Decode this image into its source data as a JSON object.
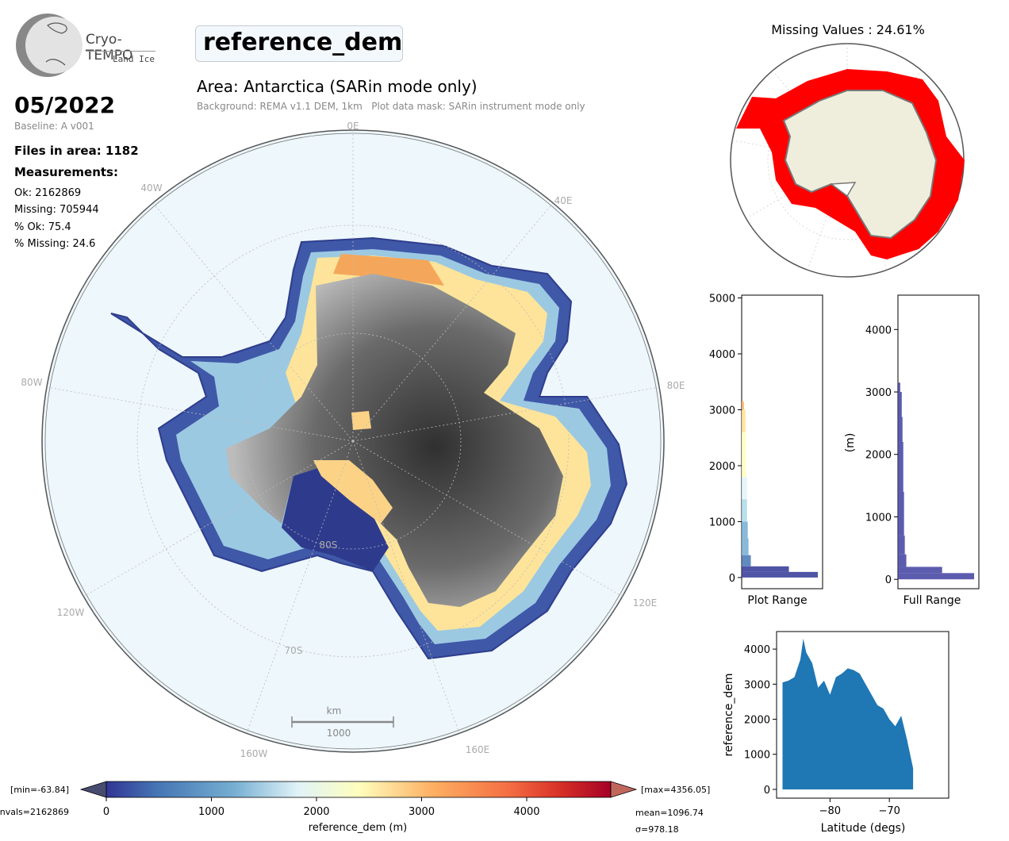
{
  "logo": {
    "line1": "Cryo-TEMPO",
    "line2": "Land Ice"
  },
  "header": {
    "parameter": "reference_dem",
    "date": "05/2022",
    "baseline": "Baseline: A v001",
    "area_title": "Area: Antarctica (SARin mode only)",
    "area_subtitle": "Background: REMA v1.1 DEM, 1km   Plot data mask: SARin instrument mode only"
  },
  "stats": {
    "files": "Files in area: 1182",
    "measurements_heading": "Measurements:",
    "ok": "Ok: 2162869",
    "missing": "Missing: 705944",
    "pct_ok": "% Ok: 75.4",
    "pct_missing": "% Missing: 24.6"
  },
  "map": {
    "lon_labels": [
      "0E",
      "40E",
      "80E",
      "120E",
      "160E",
      "160W",
      "120W",
      "80W",
      "40W"
    ],
    "lat_labels": [
      "80S",
      "70S"
    ],
    "scalebar_unit": "km",
    "scalebar_value": "1000",
    "colors": {
      "ocean": "#eef7fc",
      "low": "#313695",
      "mid": "#fefebe",
      "high": "#a50026"
    }
  },
  "colorbar": {
    "label": "reference_dem (m)",
    "ticks": [
      "0",
      "1000",
      "2000",
      "3000",
      "4000"
    ],
    "min_label": "[min=-63.84]",
    "max_label": "[max=4356.05]",
    "nvals_label": "nvals=2162869",
    "mean_label": "mean=1096.74",
    "sigma_label": "σ=978.18"
  },
  "chart_data": [
    {
      "type": "area",
      "title": "Missing Values : 24.61%",
      "description_values": {
        "missing_percent": 24.61
      }
    },
    {
      "type": "bar",
      "orientation": "horizontal",
      "xlabel": "Plot Range",
      "ylabel": "",
      "ylim": [
        -200,
        5050
      ],
      "yticks": [
        0,
        1000,
        2000,
        3000,
        4000,
        5000
      ],
      "bins": [
        0,
        100,
        200,
        400,
        700,
        1000,
        1400,
        1800,
        2200,
        2600,
        3000
      ],
      "counts": [
        1.0,
        0.62,
        0.12,
        0.09,
        0.08,
        0.07,
        0.07,
        0.06,
        0.06,
        0.05,
        0.03
      ]
    },
    {
      "type": "bar",
      "orientation": "horizontal",
      "xlabel": "Full Range",
      "ylabel": "(m)",
      "ylim": [
        -150,
        4550
      ],
      "yticks": [
        0,
        1000,
        2000,
        3000,
        4000
      ],
      "bins": [
        0,
        100,
        200,
        400,
        700,
        1000,
        1400,
        1800,
        2200,
        2600,
        3000
      ],
      "counts": [
        1.0,
        0.58,
        0.11,
        0.09,
        0.08,
        0.08,
        0.07,
        0.07,
        0.06,
        0.05,
        0.03
      ],
      "color": "#3f3fa0"
    },
    {
      "type": "scatter",
      "xlabel": "Latitude (degs)",
      "ylabel": "reference_dem",
      "xlim": [
        -89,
        -60
      ],
      "ylim": [
        -250,
        4500
      ],
      "xticks": [
        -80,
        -70
      ],
      "xtick_labels": [
        "−80",
        "−70"
      ],
      "yticks": [
        0,
        1000,
        2000,
        3000,
        4000
      ],
      "upper_envelope": [
        [
          -88,
          3050
        ],
        [
          -87,
          3100
        ],
        [
          -86,
          3200
        ],
        [
          -85,
          3700
        ],
        [
          -84.5,
          4300
        ],
        [
          -84,
          3900
        ],
        [
          -83,
          3600
        ],
        [
          -82,
          2900
        ],
        [
          -81,
          3100
        ],
        [
          -80,
          2700
        ],
        [
          -79,
          3200
        ],
        [
          -78,
          3300
        ],
        [
          -77,
          3450
        ],
        [
          -76,
          3400
        ],
        [
          -75,
          3300
        ],
        [
          -74,
          3000
        ],
        [
          -73,
          2700
        ],
        [
          -72,
          2400
        ],
        [
          -71,
          2300
        ],
        [
          -70,
          2000
        ],
        [
          -69,
          1800
        ],
        [
          -68,
          2100
        ],
        [
          -67,
          1400
        ],
        [
          -66,
          600
        ]
      ],
      "color": "#1f77b4"
    }
  ]
}
